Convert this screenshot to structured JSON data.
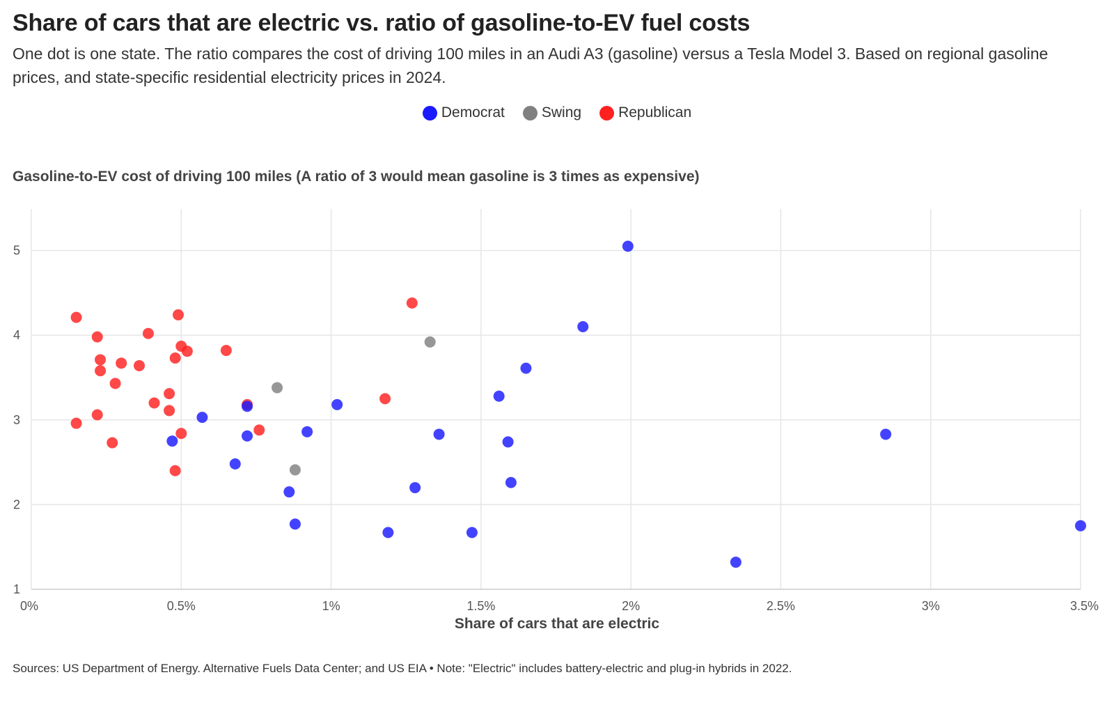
{
  "title": "Share of cars that are electric vs. ratio of gasoline-to-EV fuel costs",
  "subtitle": "One dot is one state. The ratio compares the cost of driving 100 miles in an Audi A3 (gasoline) versus a Tesla Model 3. Based on regional gasoline prices, and state-specific residential electricity prices in 2024.",
  "legend": [
    {
      "label": "Democrat",
      "color": "#1a1aff"
    },
    {
      "label": "Swing",
      "color": "#808080"
    },
    {
      "label": "Republican",
      "color": "#ff2020"
    }
  ],
  "ylabel": "Gasoline-to-EV cost of driving 100 miles (A ratio of 3 would mean gasoline is 3 times as expensive)",
  "xlabel": "Share of cars that are electric",
  "source": "Sources: US Department of Energy. Alternative Fuels Data Center; and US EIA • Note: \"Electric\" includes battery-electric and plug-in hybrids in 2022.",
  "chart_data": {
    "type": "scatter",
    "title": "Share of cars that are electric vs. ratio of gasoline-to-EV fuel costs",
    "xlabel": "Share of cars that are electric",
    "ylabel": "Gasoline-to-EV cost of driving 100 miles (A ratio of 3 would mean gasoline is 3 times as expensive)",
    "xlim": [
      0,
      3.5
    ],
    "ylim": [
      1,
      5.4
    ],
    "x_ticks": [
      {
        "value": 0,
        "label": "0%"
      },
      {
        "value": 0.5,
        "label": "0.5%"
      },
      {
        "value": 1,
        "label": "1%"
      },
      {
        "value": 1.5,
        "label": "1.5%"
      },
      {
        "value": 2,
        "label": "2%"
      },
      {
        "value": 2.5,
        "label": "2.5%"
      },
      {
        "value": 3,
        "label": "3%"
      },
      {
        "value": 3.5,
        "label": "3.5%"
      }
    ],
    "y_ticks": [
      {
        "value": 1,
        "label": "1"
      },
      {
        "value": 2,
        "label": "2"
      },
      {
        "value": 3,
        "label": "3"
      },
      {
        "value": 4,
        "label": "4"
      },
      {
        "value": 5,
        "label": "5"
      }
    ],
    "grid": true,
    "legend_position": "top-center",
    "series": [
      {
        "name": "Republican",
        "color": "#ff2020",
        "points": [
          [
            0.15,
            4.21
          ],
          [
            0.22,
            3.98
          ],
          [
            0.39,
            4.02
          ],
          [
            0.49,
            4.24
          ],
          [
            0.23,
            3.71
          ],
          [
            0.3,
            3.67
          ],
          [
            0.23,
            3.58
          ],
          [
            0.36,
            3.64
          ],
          [
            0.5,
            3.87
          ],
          [
            0.52,
            3.81
          ],
          [
            0.48,
            3.73
          ],
          [
            0.65,
            3.82
          ],
          [
            0.28,
            3.43
          ],
          [
            0.46,
            3.31
          ],
          [
            0.41,
            3.2
          ],
          [
            0.46,
            3.11
          ],
          [
            0.22,
            3.06
          ],
          [
            0.15,
            2.96
          ],
          [
            0.27,
            2.73
          ],
          [
            0.5,
            2.84
          ],
          [
            0.48,
            2.4
          ],
          [
            0.72,
            3.18
          ],
          [
            0.76,
            2.88
          ],
          [
            1.18,
            3.25
          ],
          [
            1.27,
            4.38
          ]
        ]
      },
      {
        "name": "Swing",
        "color": "#808080",
        "points": [
          [
            0.82,
            3.38
          ],
          [
            0.88,
            2.41
          ],
          [
            1.33,
            3.92
          ]
        ]
      },
      {
        "name": "Democrat",
        "color": "#1a1aff",
        "points": [
          [
            0.57,
            3.03
          ],
          [
            0.47,
            2.75
          ],
          [
            0.72,
            3.16
          ],
          [
            0.72,
            2.81
          ],
          [
            0.68,
            2.48
          ],
          [
            0.86,
            2.15
          ],
          [
            0.88,
            1.77
          ],
          [
            0.92,
            2.86
          ],
          [
            1.02,
            3.18
          ],
          [
            1.19,
            1.67
          ],
          [
            1.28,
            2.2
          ],
          [
            1.36,
            2.83
          ],
          [
            1.47,
            1.67
          ],
          [
            1.56,
            3.28
          ],
          [
            1.59,
            2.74
          ],
          [
            1.6,
            2.26
          ],
          [
            1.65,
            3.61
          ],
          [
            1.84,
            4.1
          ],
          [
            1.99,
            5.05
          ],
          [
            2.35,
            1.32
          ],
          [
            2.85,
            2.83
          ],
          [
            3.5,
            1.75
          ]
        ]
      }
    ]
  }
}
